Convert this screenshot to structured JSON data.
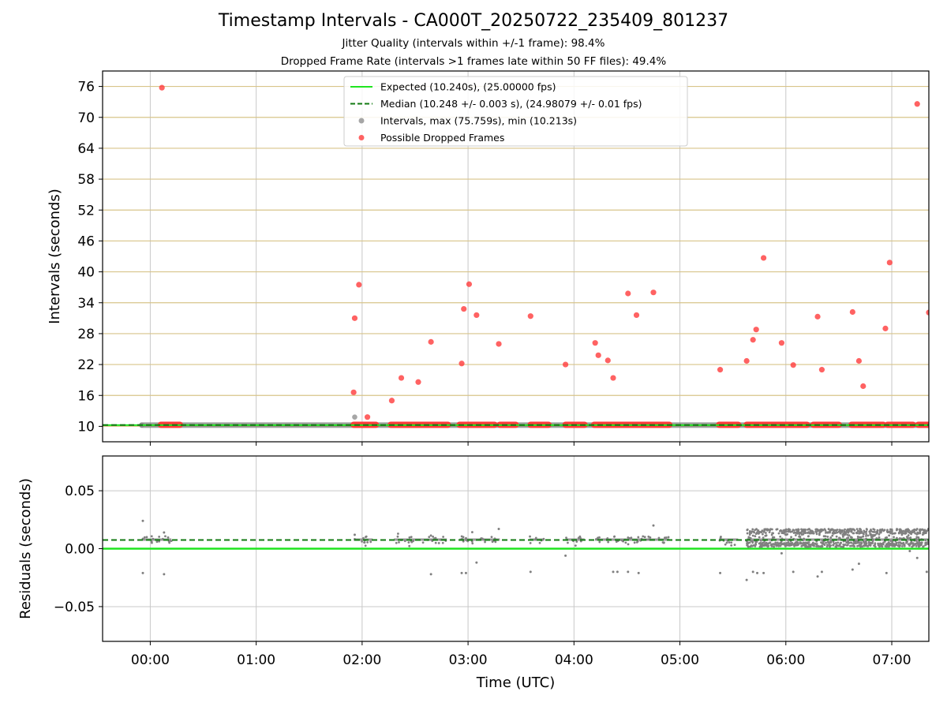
{
  "chart_data": {
    "title": "Timestamp Intervals - CA000T_20250722_235409_801237",
    "subtitle_1": "Jitter Quality (intervals within +/-1 frame): 98.4%",
    "subtitle_2": "Dropped Frame Rate (intervals >1 frames late within 50 FF files): 49.4%",
    "xlabel": "Time (UTC)",
    "x_ticks": [
      "00:00",
      "01:00",
      "02:00",
      "03:00",
      "04:00",
      "05:00",
      "06:00",
      "07:00"
    ],
    "x_range_hours": [
      -0.45,
      7.35
    ],
    "legend_position": "upper center",
    "colors": {
      "expected": "#1fe51f",
      "median": "#117a11",
      "intervals": "#808080",
      "dropped": "#ff3b3b",
      "hgrid_top": "#d8c48a",
      "grid": "#c8c8c8"
    },
    "top": {
      "type": "scatter",
      "ylabel": "Intervals (seconds)",
      "y_ticks": [
        10,
        16,
        22,
        28,
        34,
        40,
        46,
        52,
        58,
        64,
        70,
        76
      ],
      "ylim": [
        7,
        79
      ],
      "expected_value": 10.24,
      "median_value": 10.248,
      "legend": [
        "Expected (10.240s), (25.00000 fps)",
        "Median (10.248 +/- 0.003 s), (24.98079 +/- 0.01 fps)",
        "Intervals, max (75.759s), min (10.213s)",
        "Possible Dropped Frames"
      ],
      "interval_points": [
        [
          -0.08,
          10.24
        ],
        [
          1.93,
          11.8
        ],
        [
          0.1,
          10.24
        ],
        [
          1.98,
          10.24
        ]
      ],
      "dropped_points": [
        [
          0.11,
          75.76
        ],
        [
          1.92,
          16.6
        ],
        [
          1.93,
          31.0
        ],
        [
          1.97,
          37.5
        ],
        [
          2.05,
          11.8
        ],
        [
          2.28,
          15.0
        ],
        [
          2.37,
          19.4
        ],
        [
          2.53,
          18.6
        ],
        [
          2.65,
          26.4
        ],
        [
          2.94,
          22.2
        ],
        [
          2.96,
          32.8
        ],
        [
          3.01,
          37.6
        ],
        [
          3.08,
          31.6
        ],
        [
          3.29,
          26.0
        ],
        [
          3.59,
          31.4
        ],
        [
          3.92,
          22.0
        ],
        [
          4.2,
          26.2
        ],
        [
          4.23,
          23.8
        ],
        [
          4.32,
          22.8
        ],
        [
          4.37,
          19.4
        ],
        [
          4.51,
          35.8
        ],
        [
          4.59,
          31.6
        ],
        [
          4.75,
          36.0
        ],
        [
          5.38,
          21.0
        ],
        [
          5.63,
          22.7
        ],
        [
          5.69,
          26.8
        ],
        [
          5.72,
          28.8
        ],
        [
          5.79,
          42.7
        ],
        [
          5.96,
          26.2
        ],
        [
          6.07,
          21.9
        ],
        [
          6.3,
          31.3
        ],
        [
          6.34,
          21.0
        ],
        [
          6.63,
          32.2
        ],
        [
          6.69,
          22.7
        ],
        [
          6.73,
          17.8
        ],
        [
          6.94,
          29.0
        ],
        [
          6.98,
          41.8
        ],
        [
          7.24,
          72.6
        ],
        [
          7.35,
          32.1
        ]
      ],
      "dropped_bands": [
        [
          0.1,
          0.28
        ],
        [
          1.92,
          2.13
        ],
        [
          2.27,
          2.81
        ],
        [
          2.92,
          3.25
        ],
        [
          3.3,
          3.45
        ],
        [
          3.59,
          3.76
        ],
        [
          3.92,
          4.1
        ],
        [
          4.19,
          4.9
        ],
        [
          5.37,
          5.55
        ],
        [
          5.63,
          6.2
        ],
        [
          6.26,
          6.5
        ],
        [
          6.62,
          6.92
        ],
        [
          6.96,
          7.2
        ],
        [
          7.25,
          7.35
        ]
      ]
    },
    "bottom": {
      "type": "scatter",
      "ylabel": "Residuals (seconds)",
      "y_ticks": [
        "−0.05",
        "0.00",
        "0.05"
      ],
      "y_tick_values": [
        -0.05,
        0.0,
        0.05
      ],
      "ylim": [
        -0.08,
        0.08
      ],
      "expected_value": 0.0,
      "median_value": 0.0075,
      "outlier_points": [
        [
          -0.07,
          0.024
        ],
        [
          -0.07,
          -0.021
        ],
        [
          0.13,
          0.014
        ],
        [
          0.13,
          -0.022
        ],
        [
          1.93,
          0.012
        ],
        [
          2.65,
          -0.022
        ],
        [
          2.94,
          -0.021
        ],
        [
          2.98,
          -0.021
        ],
        [
          3.08,
          -0.012
        ],
        [
          3.29,
          0.017
        ],
        [
          3.59,
          -0.02
        ],
        [
          3.92,
          -0.006
        ],
        [
          4.37,
          -0.02
        ],
        [
          4.41,
          -0.02
        ],
        [
          4.51,
          -0.02
        ],
        [
          4.61,
          -0.021
        ],
        [
          4.75,
          0.02
        ],
        [
          5.38,
          -0.021
        ],
        [
          5.63,
          -0.027
        ],
        [
          5.69,
          -0.02
        ],
        [
          5.73,
          -0.021
        ],
        [
          5.79,
          -0.021
        ],
        [
          5.96,
          -0.004
        ],
        [
          6.07,
          -0.02
        ],
        [
          6.3,
          -0.024
        ],
        [
          6.34,
          -0.02
        ],
        [
          6.63,
          -0.018
        ],
        [
          6.69,
          -0.013
        ],
        [
          6.95,
          -0.021
        ],
        [
          7.17,
          -0.002
        ],
        [
          7.24,
          -0.008
        ],
        [
          7.33,
          -0.02
        ]
      ],
      "cluster_bands": [
        [
          -0.08,
          0.2
        ],
        [
          1.92,
          2.1
        ],
        [
          2.3,
          2.8
        ],
        [
          2.92,
          3.3
        ],
        [
          3.58,
          3.72
        ],
        [
          3.92,
          4.1
        ],
        [
          4.2,
          4.9
        ],
        [
          5.37,
          5.55
        ],
        [
          5.63,
          7.35
        ]
      ],
      "dense_band": [
        5.63,
        7.35
      ]
    }
  }
}
